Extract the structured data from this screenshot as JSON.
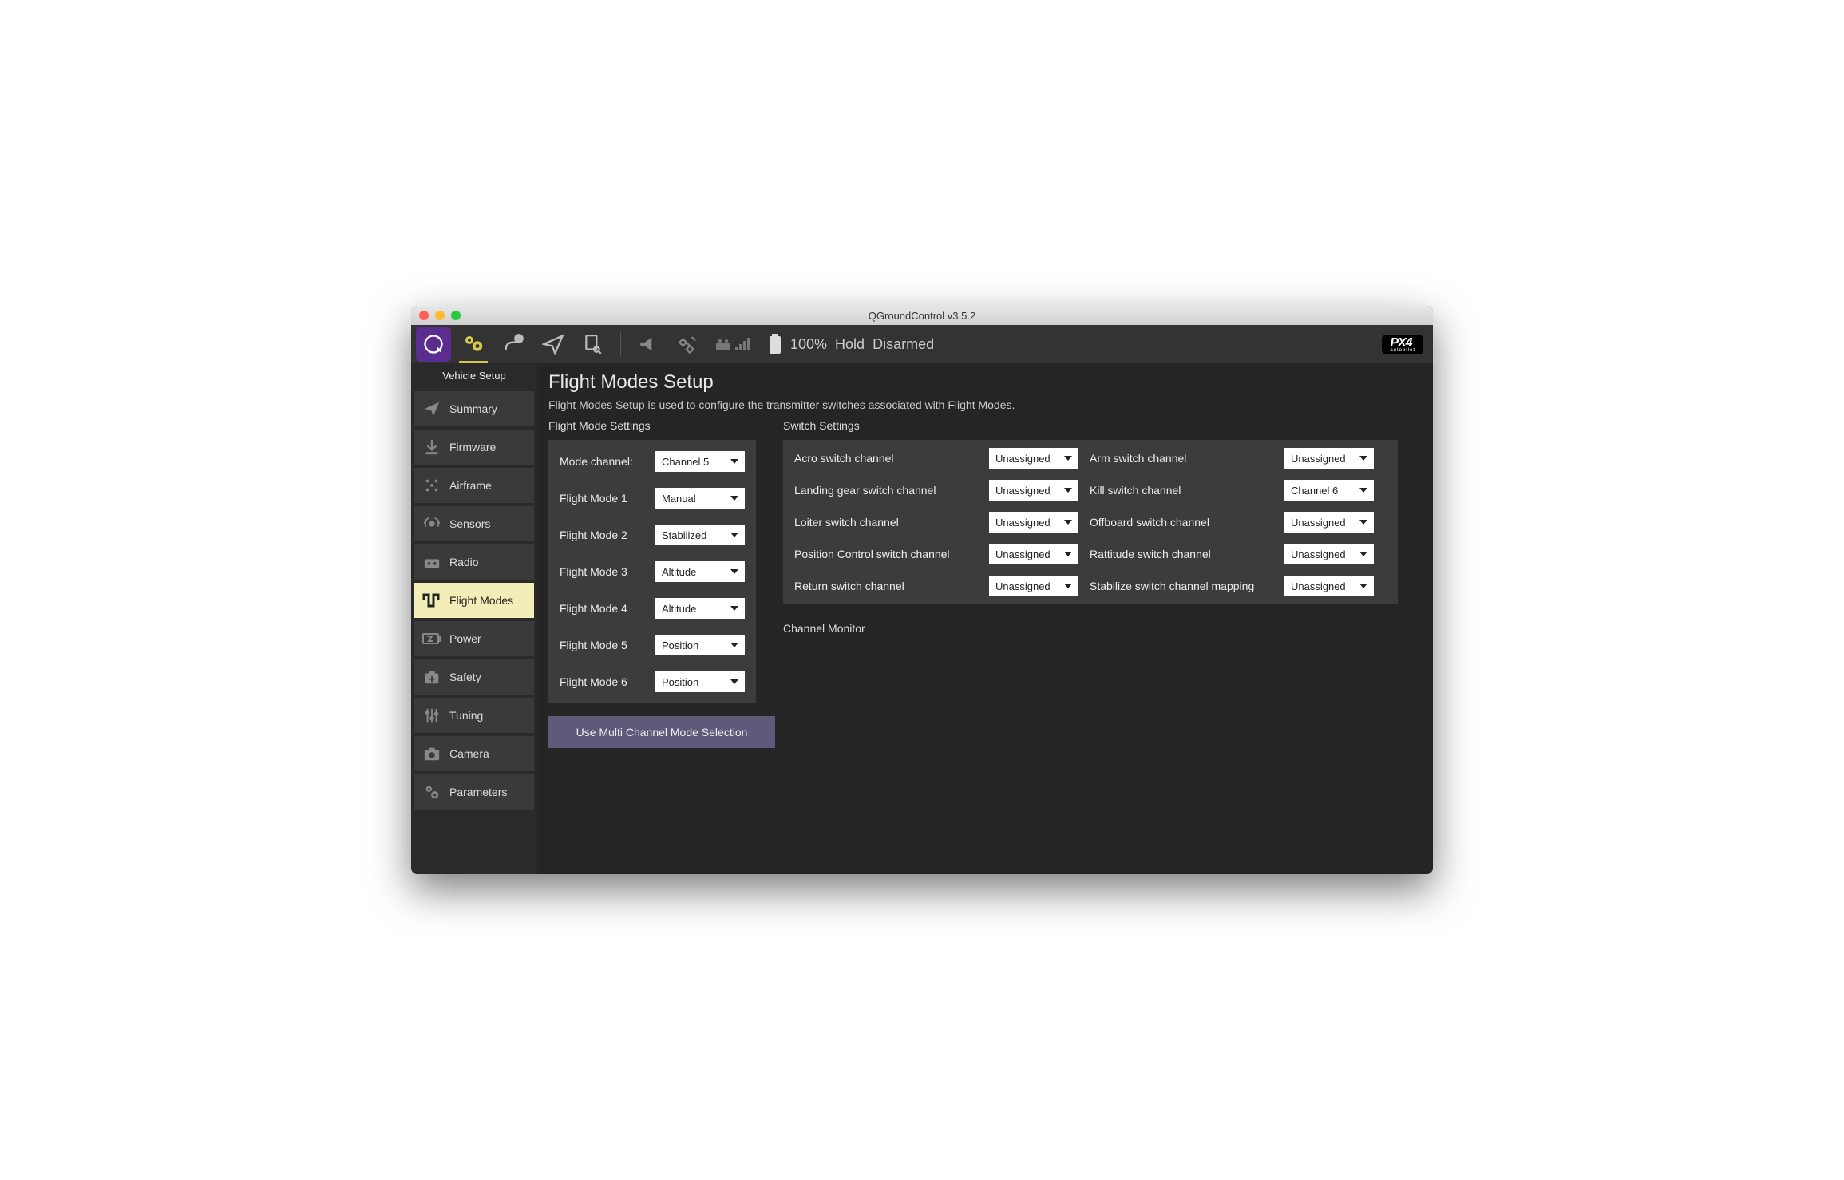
{
  "window": {
    "title": "QGroundControl v3.5.2"
  },
  "toolbar": {
    "battery_pct": "100%",
    "flight_mode": "Hold",
    "armed_state": "Disarmed",
    "px4_label": "PX4"
  },
  "sidebar": {
    "title": "Vehicle Setup",
    "items": [
      {
        "label": "Summary",
        "icon": "paperplane"
      },
      {
        "label": "Firmware",
        "icon": "download"
      },
      {
        "label": "Airframe",
        "icon": "dots"
      },
      {
        "label": "Sensors",
        "icon": "signal"
      },
      {
        "label": "Radio",
        "icon": "radio"
      },
      {
        "label": "Flight Modes",
        "icon": "wave",
        "active": true
      },
      {
        "label": "Power",
        "icon": "battery"
      },
      {
        "label": "Safety",
        "icon": "medkit"
      },
      {
        "label": "Tuning",
        "icon": "sliders"
      },
      {
        "label": "Camera",
        "icon": "camera"
      },
      {
        "label": "Parameters",
        "icon": "gears"
      }
    ]
  },
  "page": {
    "title": "Flight Modes Setup",
    "description": "Flight Modes Setup is used to configure the transmitter switches associated with Flight Modes.",
    "fm_section_label": "Flight Mode Settings",
    "sw_section_label": "Switch Settings",
    "channel_monitor_label": "Channel Monitor",
    "multi_button_label": "Use Multi Channel Mode Selection",
    "mode_channel_label": "Mode channel:",
    "mode_channel_value": "Channel 5",
    "flight_modes": [
      {
        "label": "Flight Mode 1",
        "value": "Manual"
      },
      {
        "label": "Flight Mode 2",
        "value": "Stabilized"
      },
      {
        "label": "Flight Mode 3",
        "value": "Altitude"
      },
      {
        "label": "Flight Mode 4",
        "value": "Altitude"
      },
      {
        "label": "Flight Mode 5",
        "value": "Position"
      },
      {
        "label": "Flight Mode 6",
        "value": "Position"
      }
    ],
    "switches": [
      {
        "label": "Acro switch channel",
        "value": "Unassigned"
      },
      {
        "label": "Arm switch channel",
        "value": "Unassigned"
      },
      {
        "label": "Landing gear switch channel",
        "value": "Unassigned"
      },
      {
        "label": "Kill switch channel",
        "value": "Channel 6"
      },
      {
        "label": "Loiter switch channel",
        "value": "Unassigned"
      },
      {
        "label": "Offboard switch channel",
        "value": "Unassigned"
      },
      {
        "label": "Position Control switch channel",
        "value": "Unassigned"
      },
      {
        "label": "Rattitude switch channel",
        "value": "Unassigned"
      },
      {
        "label": "Return switch channel",
        "value": "Unassigned"
      },
      {
        "label": "Stabilize switch channel mapping",
        "value": "Unassigned"
      }
    ]
  },
  "colors": {
    "accent_purple": "#5b2d8f",
    "accent_yellow": "#d6c84a",
    "sidebar_active_bg": "#f3edb8",
    "panel_bg": "#3c3c3c",
    "content_bg": "#252525",
    "combo_bg": "#ffffff"
  }
}
